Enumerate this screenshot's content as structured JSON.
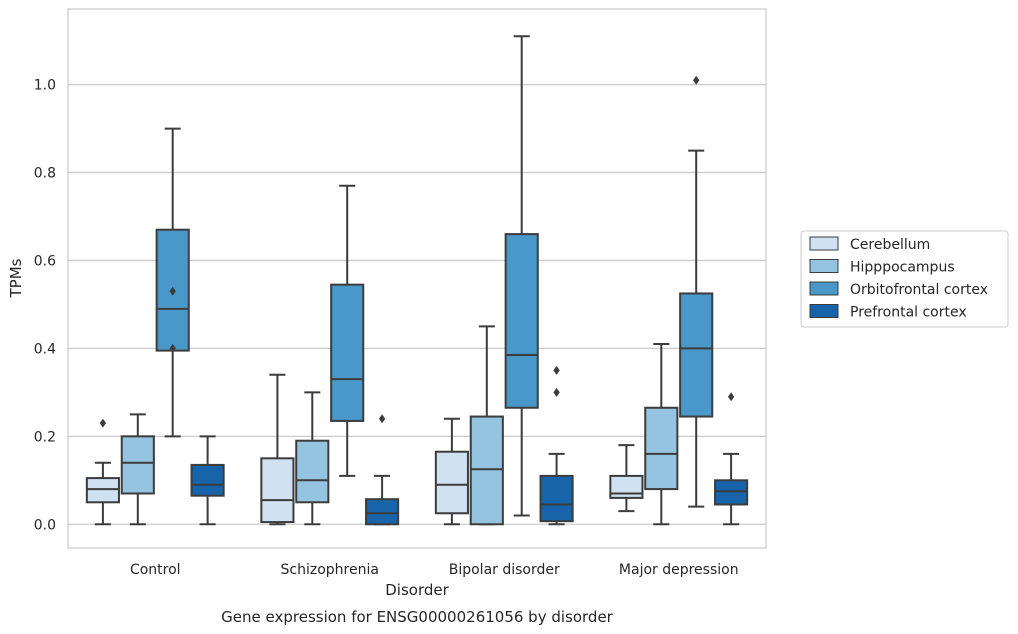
{
  "chart_data": {
    "type": "box",
    "title": "",
    "caption": "Gene expression for ENSG00000261056 by disorder",
    "xlabel": "Disorder",
    "ylabel": "TPMs",
    "ylim": [
      -0.054,
      1.172
    ],
    "yticks": [
      "0.0",
      "0.2",
      "0.4",
      "0.6",
      "0.8",
      "1.0"
    ],
    "yticks_values": [
      0.0,
      0.2,
      0.4,
      0.6,
      0.8,
      1.0
    ],
    "grid": "horizontal",
    "legend_position": "right",
    "categories": [
      "Control",
      "Schizophrenia",
      "Bipolar disorder",
      "Major depression"
    ],
    "series": [
      {
        "name": "Cerebellum",
        "color": "#d0e1f2",
        "boxes": [
          {
            "whislo": 0.0,
            "q1": 0.05,
            "med": 0.08,
            "q3": 0.105,
            "whishi": 0.14,
            "fliers": [
              0.23
            ]
          },
          {
            "whislo": 0.0,
            "q1": 0.005,
            "med": 0.055,
            "q3": 0.15,
            "whishi": 0.34,
            "fliers": []
          },
          {
            "whislo": 0.0,
            "q1": 0.025,
            "med": 0.09,
            "q3": 0.165,
            "whishi": 0.24,
            "fliers": []
          },
          {
            "whislo": 0.03,
            "q1": 0.06,
            "med": 0.07,
            "q3": 0.11,
            "whishi": 0.18,
            "fliers": []
          }
        ]
      },
      {
        "name": "Hipppocampus",
        "color": "#94c4df",
        "boxes": [
          {
            "whislo": 0.0,
            "q1": 0.07,
            "med": 0.14,
            "q3": 0.2,
            "whishi": 0.25,
            "fliers": []
          },
          {
            "whislo": 0.0,
            "q1": 0.05,
            "med": 0.1,
            "q3": 0.19,
            "whishi": 0.3,
            "fliers": []
          },
          {
            "whislo": 0.0,
            "q1": 0.0,
            "med": 0.125,
            "q3": 0.245,
            "whishi": 0.45,
            "fliers": []
          },
          {
            "whislo": 0.0,
            "q1": 0.08,
            "med": 0.16,
            "q3": 0.265,
            "whishi": 0.41,
            "fliers": []
          }
        ]
      },
      {
        "name": "Orbitofrontal cortex",
        "color": "#4a98c9",
        "boxes": [
          {
            "whislo": 0.2,
            "q1": 0.395,
            "med": 0.49,
            "q3": 0.67,
            "whishi": 0.9,
            "fliers": [
              0.4,
              0.53
            ]
          },
          {
            "whislo": 0.11,
            "q1": 0.235,
            "med": 0.33,
            "q3": 0.545,
            "whishi": 0.77,
            "fliers": []
          },
          {
            "whislo": 0.02,
            "q1": 0.265,
            "med": 0.385,
            "q3": 0.66,
            "whishi": 1.11,
            "fliers": []
          },
          {
            "whislo": 0.04,
            "q1": 0.245,
            "med": 0.4,
            "q3": 0.525,
            "whishi": 0.85,
            "fliers": [
              1.01
            ]
          }
        ]
      },
      {
        "name": "Prefrontal cortex",
        "color": "#1764ab",
        "boxes": [
          {
            "whislo": 0.0,
            "q1": 0.065,
            "med": 0.09,
            "q3": 0.135,
            "whishi": 0.2,
            "fliers": []
          },
          {
            "whislo": 0.0,
            "q1": 0.0,
            "med": 0.025,
            "q3": 0.057,
            "whishi": 0.11,
            "fliers": [
              0.24
            ]
          },
          {
            "whislo": 0.0,
            "q1": 0.007,
            "med": 0.045,
            "q3": 0.11,
            "whishi": 0.16,
            "fliers": [
              0.3,
              0.35
            ]
          },
          {
            "whislo": 0.0,
            "q1": 0.045,
            "med": 0.075,
            "q3": 0.1,
            "whishi": 0.16,
            "fliers": [
              0.29
            ]
          }
        ]
      }
    ]
  }
}
